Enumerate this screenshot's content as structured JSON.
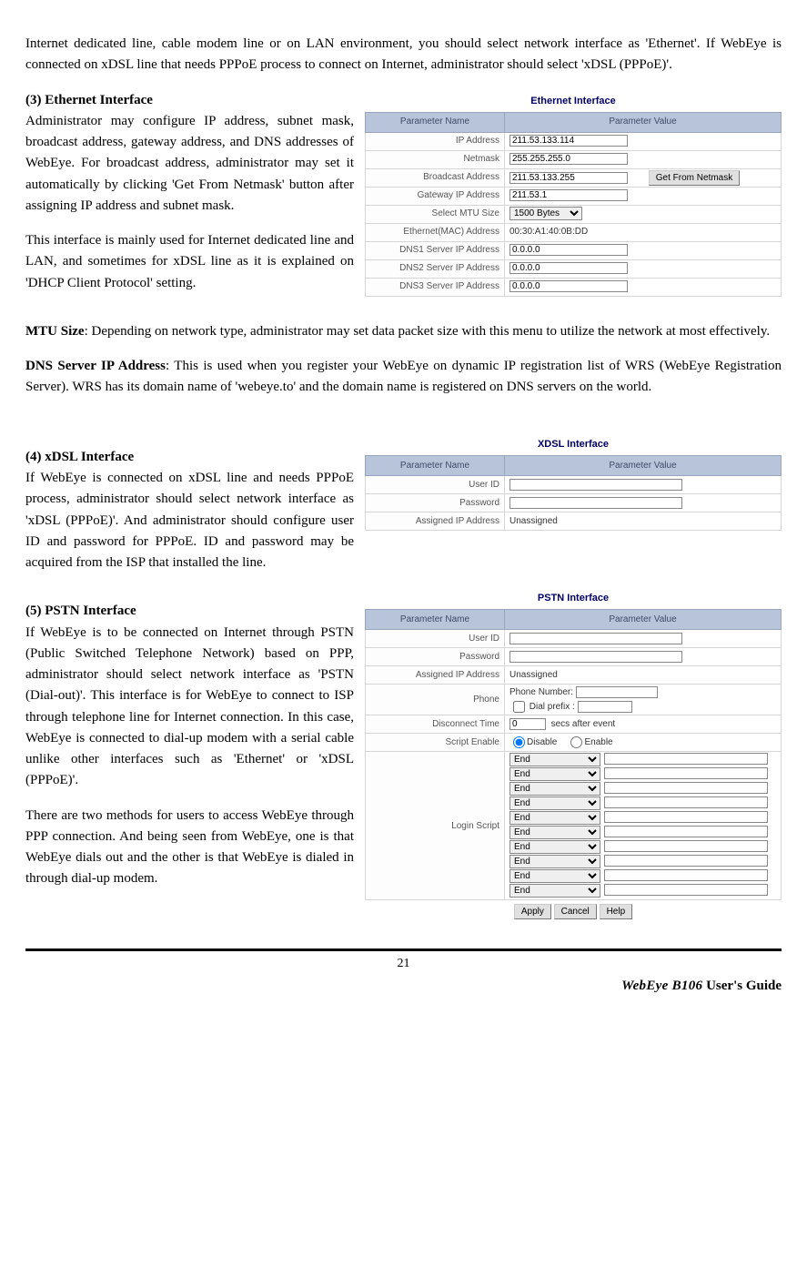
{
  "intro": "Internet dedicated line, cable modem line or on LAN environment, you should select network interface as 'Ethernet'. If WebEye is connected on xDSL line that needs PPPoE process to connect on Internet, administrator should select 'xDSL (PPPoE)'.",
  "s3": {
    "head": "(3) Ethernet Interface",
    "p1": "Administrator may configure IP address, subnet mask, broadcast address, gateway address, and DNS addresses of WebEye. For broadcast address, administrator may set it automatically by clicking 'Get From Netmask' button after assigning IP address and subnet mask.",
    "p2": "This interface is mainly used for Internet dedicated line and LAN, and sometimes for xDSL line as it is explained on 'DHCP Client Protocol' setting.",
    "mtu_head": "MTU Size",
    "mtu_body": ": Depending on network type, administrator may set data packet size with this menu to utilize the network at most effectively.",
    "dns_head": "DNS Server IP Address",
    "dns_body": ": This is used when you register your WebEye on dynamic IP registration list of WRS (WebEye Registration Server). WRS has its domain name of 'webeye.to' and the domain name is registered on DNS servers on the world."
  },
  "eth_fig": {
    "title": "Ethernet Interface",
    "col1": "Parameter Name",
    "col2": "Parameter Value",
    "rows": {
      "ip": {
        "label": "IP Address",
        "value": "211.53.133.114"
      },
      "nm": {
        "label": "Netmask",
        "value": "255.255.255.0"
      },
      "bc": {
        "label": "Broadcast Address",
        "value": "211.53.133.255",
        "btn": "Get From Netmask"
      },
      "gw": {
        "label": "Gateway IP Address",
        "value": "211.53.1"
      },
      "mtu": {
        "label": "Select MTU Size",
        "value": "1500 Bytes"
      },
      "mac": {
        "label": "Ethernet(MAC) Address",
        "value": "00:30:A1:40:0B:DD"
      },
      "dns1": {
        "label": "DNS1 Server IP Address",
        "value": "0.0.0.0"
      },
      "dns2": {
        "label": "DNS2 Server IP Address",
        "value": "0.0.0.0"
      },
      "dns3": {
        "label": "DNS3 Server IP Address",
        "value": "0.0.0.0"
      }
    }
  },
  "s4": {
    "head": "(4) xDSL Interface",
    "p1": "If WebEye is connected on xDSL line and needs PPPoE process, administrator should select network interface as 'xDSL (PPPoE)'. And administrator should configure user ID and password for PPPoE. ID and password may be acquired from the ISP that installed the line."
  },
  "xdsl_fig": {
    "title": "XDSL Interface",
    "col1": "Parameter Name",
    "col2": "Parameter Value",
    "rows": {
      "uid": {
        "label": "User ID",
        "value": ""
      },
      "pwd": {
        "label": "Password",
        "value": ""
      },
      "aip": {
        "label": "Assigned IP Address",
        "value": "Unassigned"
      }
    }
  },
  "s5": {
    "head": "(5) PSTN Interface",
    "p1": "If WebEye is to be connected on Internet through PSTN (Public Switched Telephone Network) based on PPP, administrator should select network interface as 'PSTN (Dial-out)'. This interface is for WebEye to connect to ISP through telephone line for Internet connection. In this case, WebEye is connected to dial-up modem with a serial cable unlike other interfaces such as 'Ethernet' or 'xDSL (PPPoE)'.",
    "p2": "There are two methods for users to access WebEye through PPP connection. And being seen from WebEye, one is that WebEye dials out and the other is that WebEye is dialed in through dial-up modem."
  },
  "pstn_fig": {
    "title": "PSTN Interface",
    "col1": "Parameter Name",
    "col2": "Parameter Value",
    "rows": {
      "uid": {
        "label": "User ID",
        "value": ""
      },
      "pwd": {
        "label": "Password",
        "value": ""
      },
      "aip": {
        "label": "Assigned IP Address",
        "value": "Unassigned"
      },
      "phone": {
        "label": "Phone",
        "pn_label": "Phone Number:",
        "dp_label": "Dial prefix :"
      },
      "disc": {
        "label": "Disconnect Time",
        "value": "0",
        "suffix": "secs after event"
      },
      "script_en": {
        "label": "Script Enable",
        "opt_disable": "Disable",
        "opt_enable": "Enable"
      },
      "login": {
        "label": "Login Script",
        "option": "End"
      }
    },
    "btn_apply": "Apply",
    "btn_cancel": "Cancel",
    "btn_help": "Help"
  },
  "footer": {
    "page": "21",
    "brand_bold": "WebEye B106",
    "brand_rest": " User's Guide"
  }
}
